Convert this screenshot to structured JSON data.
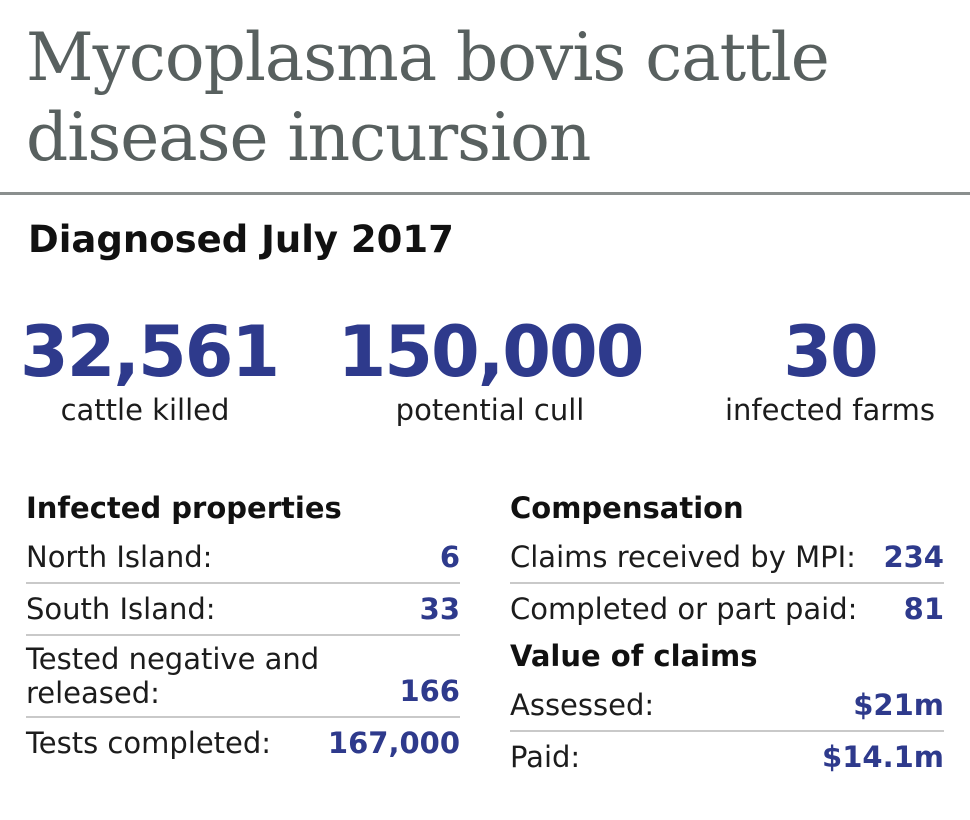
{
  "title": "Mycoplasma bovis cattle disease incursion",
  "subtitle": "Diagnosed July 2017",
  "stats": [
    {
      "value": "32,561",
      "label": "cattle killed"
    },
    {
      "value": "150,000",
      "label": "potential cull"
    },
    {
      "value": "30",
      "label": "infected farms"
    }
  ],
  "infected": {
    "heading": "Infected properties",
    "rows": [
      {
        "label": "North Island:",
        "value": "6"
      },
      {
        "label": "South Island:",
        "value": "33"
      },
      {
        "label": "Tested negative and released:",
        "value": "166"
      },
      {
        "label": "Tests completed:",
        "value": "167,000"
      }
    ]
  },
  "compensation": {
    "heading": "Compensation",
    "rows": [
      {
        "label": "Claims received by MPI:",
        "value": "234"
      },
      {
        "label": "Completed or part paid:",
        "value": "81"
      }
    ],
    "value_heading": "Value of claims",
    "value_rows": [
      {
        "label": "Assessed:",
        "value": "$21m"
      },
      {
        "label": "Paid:",
        "value": "$14.1m"
      }
    ]
  },
  "colors": {
    "accent": "#2e3a8c",
    "title": "#58605f",
    "rule": "#8a8f8e"
  }
}
